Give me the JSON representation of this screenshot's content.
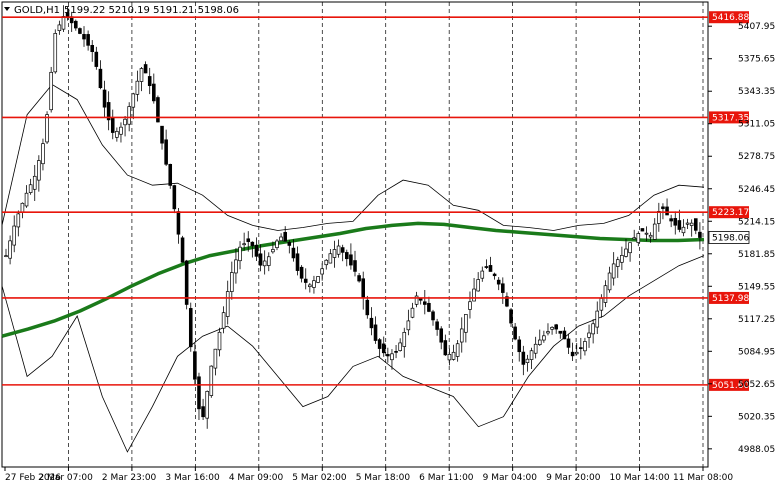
{
  "header": {
    "symbol": "GOLD,H1",
    "ohlc": "5199.22 5210.19 5191.21 5198.06"
  },
  "chart_data": {
    "type": "candlestick",
    "symbol": "GOLD",
    "timeframe": "H1",
    "ylim": [
      4970,
      5432
    ],
    "y_ticks": [
      "5407.95",
      "5375.65",
      "5343.35",
      "5311.05",
      "5278.75",
      "5246.45",
      "5214.15",
      "5181.85",
      "5149.55",
      "5117.25",
      "5084.95",
      "5052.65",
      "5020.35",
      "4988.05"
    ],
    "x_ticks": [
      "27 Feb 2026",
      "2 Mar 07:00",
      "2 Mar 23:00",
      "3 Mar 16:00",
      "4 Mar 09:00",
      "5 Mar 02:00",
      "5 Mar 18:00",
      "6 Mar 11:00",
      "9 Mar 04:00",
      "9 Mar 20:00",
      "10 Mar 14:00",
      "11 Mar 08:00"
    ],
    "levels": [
      {
        "label": "5416.88",
        "value": 5416.88
      },
      {
        "label": "5317.35",
        "value": 5317.35
      },
      {
        "label": "5223.17",
        "value": 5223.17
      },
      {
        "label": "5137.98",
        "value": 5137.98
      },
      {
        "label": "5051.60",
        "value": 5051.6
      }
    ],
    "current_price": {
      "label": "5198.06",
      "value": 5198.06
    },
    "price_path": [
      5180,
      5215,
      5240,
      5260,
      5300,
      5400,
      5420,
      5408,
      5395,
      5380,
      5330,
      5300,
      5310,
      5340,
      5370,
      5340,
      5290,
      5240,
      5180,
      5080,
      5010,
      5070,
      5110,
      5160,
      5190,
      5195,
      5170,
      5180,
      5200,
      5190,
      5160,
      5150,
      5160,
      5180,
      5190,
      5175,
      5160,
      5120,
      5090,
      5080,
      5085,
      5110,
      5140,
      5130,
      5110,
      5080,
      5085,
      5120,
      5150,
      5170,
      5160,
      5140,
      5100,
      5070,
      5090,
      5100,
      5110,
      5100,
      5080,
      5090,
      5110,
      5140,
      5170,
      5180,
      5195,
      5205,
      5200,
      5230,
      5215,
      5205,
      5215,
      5198
    ],
    "ma_path": [
      5100,
      5107,
      5115,
      5125,
      5137,
      5150,
      5162,
      5172,
      5180,
      5185,
      5190,
      5194,
      5198,
      5202,
      5207,
      5210,
      5212,
      5211,
      5208,
      5205,
      5203,
      5201,
      5199,
      5197,
      5196,
      5195,
      5195,
      5196
    ],
    "bb_upper": [
      5210,
      5320,
      5350,
      5335,
      5290,
      5260,
      5250,
      5252,
      5240,
      5220,
      5210,
      5205,
      5208,
      5212,
      5214,
      5240,
      5255,
      5250,
      5230,
      5225,
      5210,
      5208,
      5205,
      5210,
      5212,
      5220,
      5240,
      5250,
      5248
    ],
    "bb_lower": [
      5150,
      5060,
      5080,
      5120,
      5040,
      4985,
      5030,
      5080,
      5100,
      5110,
      5090,
      5060,
      5030,
      5040,
      5070,
      5080,
      5060,
      5050,
      5040,
      5010,
      5020,
      5060,
      5090,
      5110,
      5120,
      5140,
      5155,
      5170,
      5180
    ],
    "colors": {
      "level_line": "#e8150b",
      "level_label_bg": "#e8150b",
      "ma": "#1a7a1a",
      "bands": "#000000",
      "candle": "#000000",
      "current_bg": "#ffffff"
    }
  }
}
